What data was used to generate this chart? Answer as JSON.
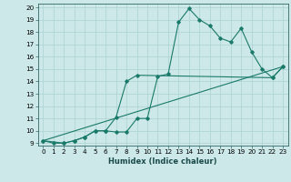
{
  "title": "",
  "xlabel": "Humidex (Indice chaleur)",
  "ylabel": "",
  "bg_color": "#cce8e8",
  "grid_color": "#b0d4d4",
  "line_color": "#1a7a6a",
  "xlim": [
    -0.5,
    23.5
  ],
  "ylim": [
    8.8,
    20.3
  ],
  "xticks": [
    0,
    1,
    2,
    3,
    4,
    5,
    6,
    7,
    8,
    9,
    10,
    11,
    12,
    13,
    14,
    15,
    16,
    17,
    18,
    19,
    20,
    21,
    22,
    23
  ],
  "yticks": [
    9,
    10,
    11,
    12,
    13,
    14,
    15,
    16,
    17,
    18,
    19,
    20
  ],
  "line1_x": [
    0,
    1,
    2,
    3,
    4,
    5,
    6,
    7,
    8,
    9,
    10,
    11,
    12,
    13,
    14,
    15,
    16,
    17,
    18,
    19,
    20,
    21,
    22,
    23
  ],
  "line1_y": [
    9.2,
    9.0,
    9.0,
    9.2,
    9.5,
    10.0,
    10.0,
    9.9,
    9.9,
    11.0,
    11.0,
    14.4,
    14.6,
    18.8,
    19.9,
    19.0,
    18.5,
    17.5,
    17.2,
    18.3,
    16.4,
    15.0,
    14.3,
    15.2
  ],
  "line2_x": [
    0,
    2,
    3,
    4,
    5,
    6,
    7,
    8,
    9,
    22,
    23
  ],
  "line2_y": [
    9.2,
    9.0,
    9.2,
    9.5,
    10.0,
    10.0,
    11.1,
    14.0,
    14.5,
    14.3,
    15.2
  ],
  "line3_x": [
    0,
    23
  ],
  "line3_y": [
    9.2,
    15.2
  ],
  "xlabel_fontsize": 6.0,
  "tick_fontsize": 5.2
}
